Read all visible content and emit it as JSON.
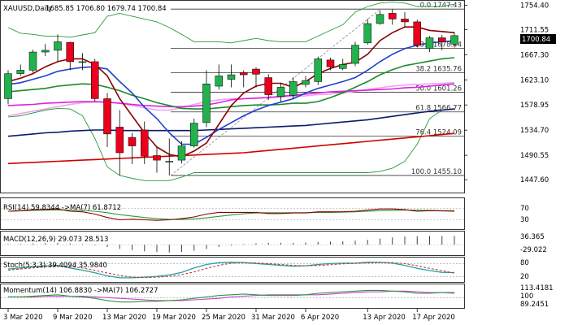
{
  "header": {
    "symbol": "XAUUSD,Daily",
    "ohlc": "1685.85 1706.80 1679.74 1700.84"
  },
  "indicators": {
    "rsi": {
      "label": "RSI(14) 59.8344 ->MA(7) 61.8712",
      "ticks": [
        "70",
        "30"
      ]
    },
    "macd": {
      "label": "MACD(12,26,9) 29.073 28.513",
      "ticks": [
        "36.365",
        "-29.022"
      ]
    },
    "stoch": {
      "label": "Stoch(5,3,3) 39.4094 35.9840",
      "ticks": [
        "80",
        "20"
      ]
    },
    "momentum": {
      "label": "Momentum(14) 106.8830 ->MA(7) 106.2727",
      "ticks": [
        "113.4181",
        "100",
        "89.2451"
      ]
    }
  },
  "colors": {
    "up": "#22b14c",
    "down": "#e8001c",
    "bollinger": "#2a9a3a",
    "ma_fast": "#8b0000",
    "ma_mid": "#1f3fcf",
    "ma_slow": "#1b8a2a",
    "ma_magenta": "#e020e0",
    "ma_pink": "#f0a0f0",
    "ma_navy": "#0a1a6e",
    "ma_red": "#d00000",
    "fib": "#333333"
  },
  "chart_data": {
    "type": "candlestick",
    "title": "XAUUSD,Daily",
    "ylim": [
      1425,
      1762
    ],
    "last_price_label": "1700.84",
    "price_ticks": [
      "1754.40",
      "1711.55",
      "1667.30",
      "1623.10",
      "1578.95",
      "1534.70",
      "1490.55",
      "1447.60"
    ],
    "price_tick_values": [
      1754.4,
      1711.55,
      1667.3,
      1623.1,
      1578.95,
      1534.7,
      1490.55,
      1447.6
    ],
    "date_labels": [
      "3 Mar 2020",
      "9 Mar 2020",
      "13 Mar 2020",
      "19 Mar 2020",
      "25 Mar 2020",
      "31 Mar 2020",
      "6 Apr 2020",
      "13 Apr 2020",
      "17 Apr 2020"
    ],
    "date_label_index": [
      0,
      4,
      8,
      12,
      16,
      20,
      24,
      29,
      33
    ],
    "fib_levels": [
      {
        "label": "0.0 1747.43",
        "value": 1747.43
      },
      {
        "label": "23.6 1678.44",
        "value": 1678.44
      },
      {
        "label": "38.2 1635.76",
        "value": 1635.76
      },
      {
        "label": "50.0 1601.26",
        "value": 1601.26
      },
      {
        "label": "61.8 1566.77",
        "value": 1566.77
      },
      {
        "label": "76.4 1524.09",
        "value": 1524.09
      },
      {
        "label": "100.0 1455.10",
        "value": 1455.1
      }
    ],
    "candles": [
      {
        "o": 1590,
        "h": 1640,
        "l": 1580,
        "c": 1634
      },
      {
        "o": 1634,
        "h": 1650,
        "l": 1630,
        "c": 1640
      },
      {
        "o": 1640,
        "h": 1676,
        "l": 1636,
        "c": 1672
      },
      {
        "o": 1672,
        "h": 1686,
        "l": 1665,
        "c": 1675
      },
      {
        "o": 1675,
        "h": 1703,
        "l": 1655,
        "c": 1690
      },
      {
        "o": 1689,
        "h": 1690,
        "l": 1640,
        "c": 1655
      },
      {
        "o": 1655,
        "h": 1670,
        "l": 1640,
        "c": 1655
      },
      {
        "o": 1655,
        "h": 1660,
        "l": 1585,
        "c": 1590
      },
      {
        "o": 1590,
        "h": 1600,
        "l": 1505,
        "c": 1528
      },
      {
        "o": 1540,
        "h": 1570,
        "l": 1455,
        "c": 1495
      },
      {
        "o": 1522,
        "h": 1530,
        "l": 1475,
        "c": 1507
      },
      {
        "o": 1535,
        "h": 1550,
        "l": 1475,
        "c": 1489
      },
      {
        "o": 1490,
        "h": 1505,
        "l": 1460,
        "c": 1482
      },
      {
        "o": 1480,
        "h": 1520,
        "l": 1455,
        "c": 1480
      },
      {
        "o": 1482,
        "h": 1515,
        "l": 1476,
        "c": 1507
      },
      {
        "o": 1507,
        "h": 1555,
        "l": 1504,
        "c": 1547
      },
      {
        "o": 1548,
        "h": 1640,
        "l": 1540,
        "c": 1616
      },
      {
        "o": 1612,
        "h": 1650,
        "l": 1606,
        "c": 1630
      },
      {
        "o": 1624,
        "h": 1650,
        "l": 1610,
        "c": 1632
      },
      {
        "o": 1636,
        "h": 1640,
        "l": 1610,
        "c": 1632
      },
      {
        "o": 1642,
        "h": 1645,
        "l": 1610,
        "c": 1633
      },
      {
        "o": 1627,
        "h": 1633,
        "l": 1588,
        "c": 1597
      },
      {
        "o": 1594,
        "h": 1618,
        "l": 1585,
        "c": 1610
      },
      {
        "o": 1596,
        "h": 1628,
        "l": 1590,
        "c": 1620
      },
      {
        "o": 1615,
        "h": 1630,
        "l": 1610,
        "c": 1622
      },
      {
        "o": 1620,
        "h": 1664,
        "l": 1614,
        "c": 1660
      },
      {
        "o": 1658,
        "h": 1662,
        "l": 1640,
        "c": 1646
      },
      {
        "o": 1643,
        "h": 1660,
        "l": 1640,
        "c": 1650
      },
      {
        "o": 1652,
        "h": 1690,
        "l": 1647,
        "c": 1684
      },
      {
        "o": 1688,
        "h": 1730,
        "l": 1685,
        "c": 1722
      },
      {
        "o": 1722,
        "h": 1745,
        "l": 1720,
        "c": 1738
      },
      {
        "o": 1740,
        "h": 1747,
        "l": 1720,
        "c": 1730
      },
      {
        "o": 1730,
        "h": 1742,
        "l": 1715,
        "c": 1725
      },
      {
        "o": 1725,
        "h": 1729,
        "l": 1680,
        "c": 1684
      },
      {
        "o": 1678,
        "h": 1700,
        "l": 1672,
        "c": 1697
      },
      {
        "o": 1697,
        "h": 1702,
        "l": 1675,
        "c": 1690
      },
      {
        "o": 1685.85,
        "h": 1706.8,
        "l": 1679.74,
        "c": 1700.84
      }
    ],
    "overlays": {
      "bb_upper": [
        1715,
        1705,
        1703,
        1700,
        1700,
        1698,
        1702,
        1706,
        1735,
        1740,
        1735,
        1730,
        1725,
        1715,
        1703,
        1690,
        1690,
        1690,
        1688,
        1692,
        1696,
        1692,
        1690,
        1690,
        1690,
        1700,
        1710,
        1720,
        1742,
        1752,
        1758,
        1760,
        1758,
        1752,
        1752,
        1752,
        1756
      ],
      "bb_lower": [
        1558,
        1560,
        1565,
        1570,
        1573,
        1572,
        1560,
        1520,
        1470,
        1455,
        1450,
        1446,
        1446,
        1446,
        1452,
        1460,
        1460,
        1460,
        1460,
        1460,
        1460,
        1460,
        1460,
        1460,
        1460,
        1460,
        1460,
        1460,
        1460,
        1460,
        1462,
        1468,
        1480,
        1510,
        1555,
        1570,
        1572
      ],
      "ma_fast": [
        1620,
        1626,
        1634,
        1646,
        1655,
        1660,
        1660,
        1650,
        1630,
        1590,
        1560,
        1530,
        1505,
        1492,
        1488,
        1498,
        1512,
        1545,
        1578,
        1600,
        1612,
        1617,
        1617,
        1610,
        1620,
        1634,
        1643,
        1650,
        1654,
        1668,
        1692,
        1706,
        1716,
        1716,
        1710,
        1708,
        1706
      ],
      "ma_mid": [
        1615,
        1618,
        1624,
        1630,
        1638,
        1642,
        1645,
        1646,
        1642,
        1620,
        1600,
        1575,
        1555,
        1530,
        1510,
        1510,
        1522,
        1536,
        1548,
        1560,
        1570,
        1578,
        1584,
        1590,
        1600,
        1608,
        1614,
        1620,
        1627,
        1640,
        1655,
        1668,
        1678,
        1684,
        1688,
        1690,
        1692
      ],
      "ma_slow": [
        1602,
        1604,
        1606,
        1608,
        1612,
        1614,
        1616,
        1615,
        1610,
        1604,
        1596,
        1590,
        1583,
        1578,
        1573,
        1572,
        1572,
        1574,
        1576,
        1578,
        1579,
        1579,
        1580,
        1582,
        1582,
        1585,
        1592,
        1600,
        1610,
        1620,
        1632,
        1641,
        1648,
        1652,
        1656,
        1660,
        1662
      ],
      "ma_magenta": [
        1578,
        1579,
        1580,
        1582,
        1583,
        1584,
        1585,
        1585,
        1584,
        1582,
        1580,
        1578,
        1577,
        1576,
        1576,
        1577,
        1579,
        1583,
        1588,
        1590,
        1591,
        1592,
        1594,
        1596,
        1598,
        1600,
        1602,
        1603,
        1604,
        1605,
        1606,
        1607,
        1609,
        1610,
        1612,
        1614,
        1616
      ],
      "ma_pink": [
        1560,
        1564,
        1568,
        1572,
        1576,
        1580,
        1583,
        1584,
        1584,
        1582,
        1578,
        1574,
        1570,
        1570,
        1574,
        1580,
        1585,
        1588,
        1590,
        1590,
        1591,
        1592,
        1593,
        1594,
        1595,
        1597,
        1598,
        1600,
        1603,
        1606,
        1609,
        1612,
        1614,
        1615,
        1616,
        1617,
        1618
      ],
      "ma_navy": [
        1524,
        1526,
        1528,
        1530,
        1531,
        1533,
        1534,
        1535,
        1535,
        1534,
        1534,
        1534,
        1534,
        1534,
        1534,
        1534,
        1535,
        1536,
        1537,
        1538,
        1539,
        1540,
        1541,
        1542,
        1543,
        1545,
        1547,
        1549,
        1551,
        1553,
        1556,
        1559,
        1562,
        1565,
        1568,
        1570,
        1572
      ],
      "ma_red": [
        1476,
        1477,
        1478,
        1479,
        1480,
        1481,
        1482,
        1483,
        1484,
        1485,
        1486,
        1487,
        1488,
        1489,
        1490,
        1491,
        1492,
        1493,
        1494,
        1495,
        1497,
        1499,
        1501,
        1503,
        1505,
        1507,
        1509,
        1511,
        1513,
        1515,
        1517,
        1519,
        1521,
        1523,
        1525,
        1527,
        1529
      ]
    },
    "rsi": {
      "ylim": [
        0,
        100
      ],
      "values": [
        60,
        62,
        66,
        66,
        68,
        60,
        58,
        50,
        38,
        30,
        32,
        30,
        28,
        30,
        34,
        40,
        50,
        56,
        56,
        56,
        56,
        52,
        52,
        54,
        54,
        58,
        58,
        58,
        60,
        64,
        68,
        68,
        66,
        60,
        62,
        61,
        60
      ],
      "ma": [
        60,
        61,
        63,
        64,
        65,
        64,
        63,
        60,
        55,
        48,
        43,
        38,
        34,
        31,
        31,
        33,
        37,
        42,
        47,
        51,
        54,
        55,
        55,
        55,
        55,
        56,
        56,
        57,
        58,
        60,
        62,
        63,
        64,
        64,
        63,
        62,
        62
      ]
    },
    "macd": {
      "ylim": [
        -32,
        38
      ],
      "histogram": [
        2,
        3,
        4,
        5,
        6,
        4,
        2,
        -2,
        -8,
        -14,
        -18,
        -22,
        -24,
        -26,
        -24,
        -20,
        -14,
        -8,
        -3,
        2,
        5,
        6,
        6,
        6,
        7,
        9,
        10,
        11,
        13,
        16,
        20,
        24,
        27,
        28,
        29,
        29,
        29
      ]
    },
    "stoch": {
      "ylim": [
        0,
        100
      ],
      "k": [
        55,
        60,
        66,
        70,
        72,
        60,
        50,
        38,
        24,
        15,
        15,
        18,
        22,
        28,
        40,
        60,
        76,
        84,
        86,
        84,
        80,
        76,
        72,
        68,
        70,
        76,
        80,
        82,
        82,
        86,
        86,
        82,
        72,
        58,
        48,
        40,
        39
      ],
      "d": [
        50,
        55,
        60,
        65,
        69,
        67,
        60,
        49,
        37,
        26,
        18,
        16,
        18,
        22,
        30,
        42,
        58,
        72,
        82,
        84,
        83,
        80,
        76,
        72,
        70,
        71,
        75,
        79,
        81,
        83,
        85,
        84,
        80,
        70,
        58,
        48,
        36
      ]
    },
    "momentum": {
      "ylim": [
        87,
        116
      ],
      "values": [
        101,
        101,
        102,
        103,
        104,
        102,
        101,
        99,
        96,
        94,
        94,
        95,
        95,
        96,
        97,
        99,
        101,
        103,
        104,
        105,
        104,
        103,
        103,
        103,
        104,
        106,
        107,
        108,
        109,
        110,
        110,
        109,
        108,
        106,
        106,
        107,
        107
      ],
      "ma": [
        101,
        101,
        101,
        102,
        102,
        102,
        102,
        101,
        100,
        99,
        98,
        97,
        96,
        96,
        96,
        97,
        98,
        99,
        101,
        102,
        103,
        104,
        104,
        104,
        104,
        104,
        105,
        106,
        107,
        108,
        108,
        109,
        109,
        108,
        107,
        107,
        106
      ]
    }
  }
}
